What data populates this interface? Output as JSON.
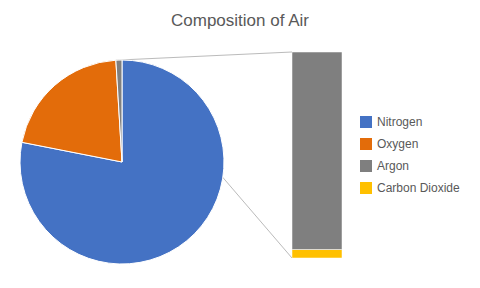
{
  "chart_data": [
    {
      "type": "pie",
      "title": "Composition of Air",
      "categories": [
        "Nitrogen",
        "Oxygen",
        null
      ],
      "values": [
        78.09,
        20.95,
        0.96
      ],
      "colors": [
        "#4472C4",
        "#E36C0A",
        "#7F7F7F"
      ]
    },
    {
      "type": "bar",
      "stacked": true,
      "tick_labels": false,
      "legend": "right",
      "categories": [
        null
      ],
      "ylim": [
        0,
        0.97
      ],
      "series": [
        {
          "name": "Carbon Dioxide",
          "color": "#FFC000",
          "values": [
            0.04
          ]
        },
        {
          "name": "Argon",
          "color": "#7F7F7F",
          "values": [
            0.93
          ]
        }
      ]
    }
  ]
}
